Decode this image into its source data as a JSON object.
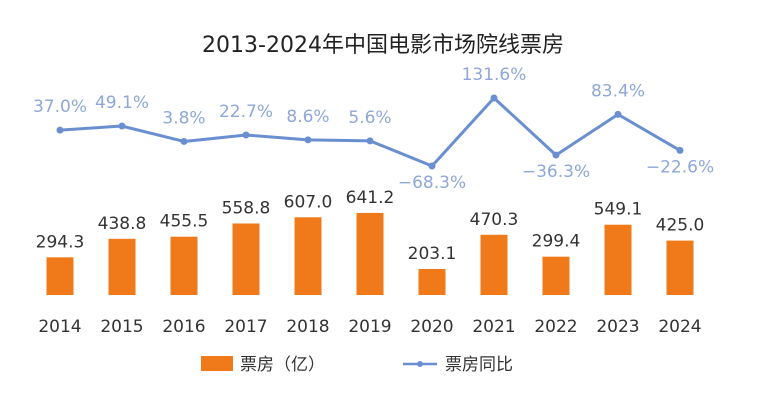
{
  "chart_data": {
    "type": "bar",
    "title": "2013-2024年中国电影市场院线票房",
    "categories": [
      "2014",
      "2015",
      "2016",
      "2017",
      "2018",
      "2019",
      "2020",
      "2021",
      "2022",
      "2023",
      "2024"
    ],
    "series": [
      {
        "name": "票房（亿）",
        "type": "bar",
        "values": [
          294.3,
          438.8,
          455.5,
          558.8,
          607.0,
          641.2,
          203.1,
          470.3,
          299.4,
          549.1,
          425.0
        ],
        "labels": [
          "294.3",
          "438.8",
          "455.5",
          "558.8",
          "607.0",
          "641.2",
          "203.1",
          "470.3",
          "299.4",
          "549.1",
          "425.0"
        ]
      },
      {
        "name": "票房同比",
        "type": "line",
        "values": [
          37.0,
          49.1,
          3.8,
          22.7,
          8.6,
          5.6,
          -68.3,
          131.6,
          -36.3,
          83.4,
          -22.6
        ],
        "labels": [
          "37.0%",
          "49.1%",
          "3.8%",
          "22.7%",
          "8.6%",
          "5.6%",
          "−68.3%",
          "131.6%",
          "−36.3%",
          "83.4%",
          "−22.6%"
        ]
      }
    ],
    "legend_position": "bottom",
    "grid": false,
    "colors": {
      "bar": "#f07a1a",
      "line": "#6a8fd0",
      "line_label": "#8ea7d8"
    }
  }
}
